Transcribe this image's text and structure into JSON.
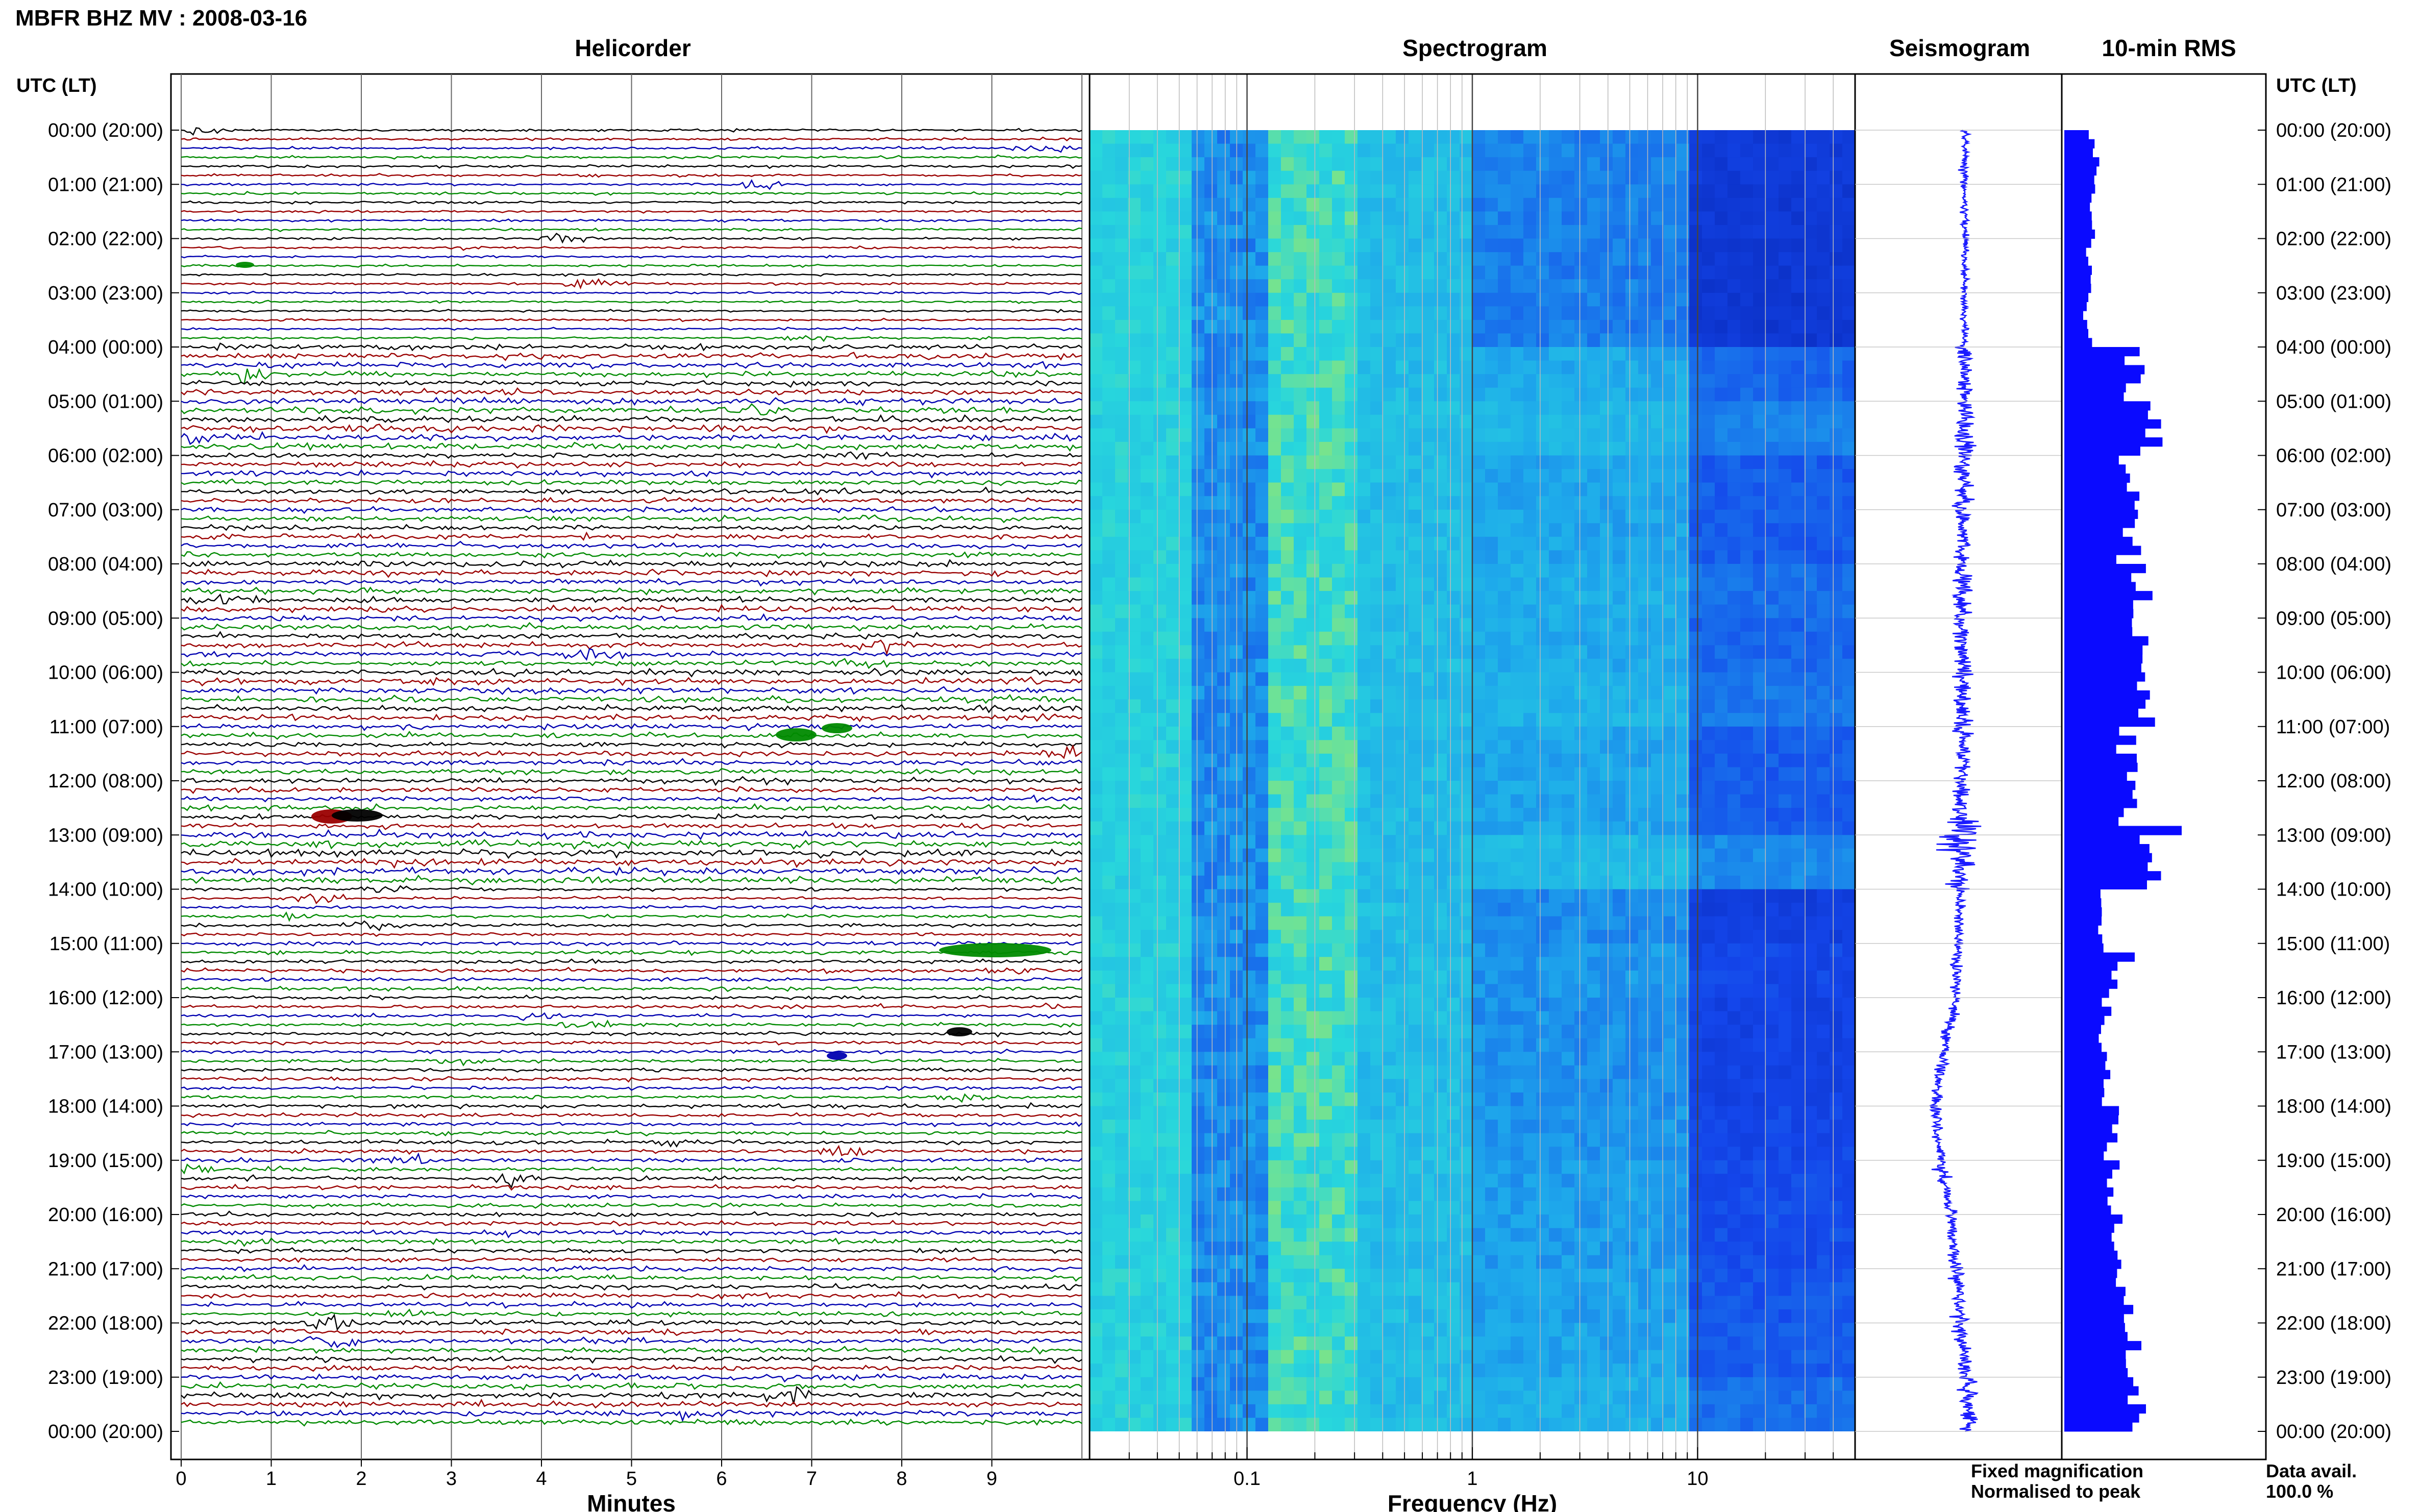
{
  "title": "MBFR BHZ MV : 2008-03-16",
  "panels": {
    "helicorder": "Helicorder",
    "spectrogram": "Spectrogram",
    "seismogram": "Seismogram",
    "rms": "10-min RMS"
  },
  "axis_titles": {
    "left_top": "UTC (LT)",
    "right_top": "UTC (LT)",
    "helicorder_x": "Minutes",
    "spectrogram_x": "Frequency (Hz)"
  },
  "legend": {
    "fixed": "Fixed magnification",
    "normalised": "Normalised to peak",
    "fixed_color": "#1010e0",
    "normalised_color": "#e01010"
  },
  "data_avail": {
    "label": "Data avail.",
    "value": "100.0 %"
  },
  "colors": {
    "trace_cycle": [
      "#000000",
      "#9a0000",
      "#0000b0",
      "#008a00"
    ],
    "seismogram": "#1a1aff",
    "rms_bar": "#0a0aff",
    "spectrogram_low": "#0010c0",
    "spectrogram_mid": "#10c8f0",
    "spectrogram_high": "#f0f020"
  },
  "chart_data": [
    {
      "type": "line",
      "name": "helicorder",
      "xlabel": "Minutes",
      "xlim": [
        0,
        10
      ],
      "xticks": [
        "0",
        "1",
        "2",
        "3",
        "4",
        "5",
        "6",
        "7",
        "8",
        "9"
      ],
      "rows": 144,
      "row_minutes": 10,
      "y_tick_labels": [
        "00:00 (20:00)",
        "01:00 (21:00)",
        "02:00 (22:00)",
        "03:00 (23:00)",
        "04:00 (00:00)",
        "05:00 (01:00)",
        "06:00 (02:00)",
        "07:00 (03:00)",
        "08:00 (04:00)",
        "09:00 (05:00)",
        "10:00 (06:00)",
        "11:00 (07:00)",
        "12:00 (08:00)",
        "13:00 (09:00)",
        "14:00 (10:00)",
        "15:00 (11:00)",
        "16:00 (12:00)",
        "17:00 (13:00)",
        "18:00 (14:00)",
        "19:00 (15:00)",
        "20:00 (16:00)",
        "21:00 (17:00)",
        "22:00 (18:00)",
        "23:00 (19:00)",
        "00:00 (20:00)"
      ]
    },
    {
      "type": "heatmap",
      "name": "spectrogram",
      "xlabel": "Frequency (Hz)",
      "xscale": "log",
      "xlim": [
        0.02,
        50
      ],
      "xticks": [
        "0.1",
        "1",
        "10"
      ]
    },
    {
      "type": "line",
      "name": "seismogram",
      "note_axis": "time 00:00-24:00 UTC, long-period drift",
      "drift_points_hours": [
        0,
        4,
        8,
        12,
        14,
        16,
        17,
        18,
        19,
        20,
        21,
        22,
        23,
        24
      ],
      "drift_values": [
        0,
        0,
        -0.1,
        -0.1,
        -0.2,
        -0.4,
        -0.9,
        -1.3,
        -1.1,
        -0.6,
        -0.4,
        -0.2,
        0.1,
        0.2
      ]
    },
    {
      "type": "bar",
      "name": "10-min RMS",
      "orientation": "horizontal",
      "hours": [
        0,
        1,
        2,
        3,
        4,
        5,
        6,
        7,
        8,
        9,
        10,
        11,
        12,
        13,
        14,
        15,
        16,
        17,
        18,
        19,
        20,
        21,
        22,
        23
      ],
      "values": [
        0.25,
        0.22,
        0.2,
        0.2,
        0.6,
        0.75,
        0.55,
        0.55,
        0.65,
        0.6,
        0.7,
        0.55,
        0.55,
        0.8,
        0.3,
        0.4,
        0.35,
        0.35,
        0.4,
        0.45,
        0.45,
        0.5,
        0.55,
        0.65
      ]
    }
  ]
}
